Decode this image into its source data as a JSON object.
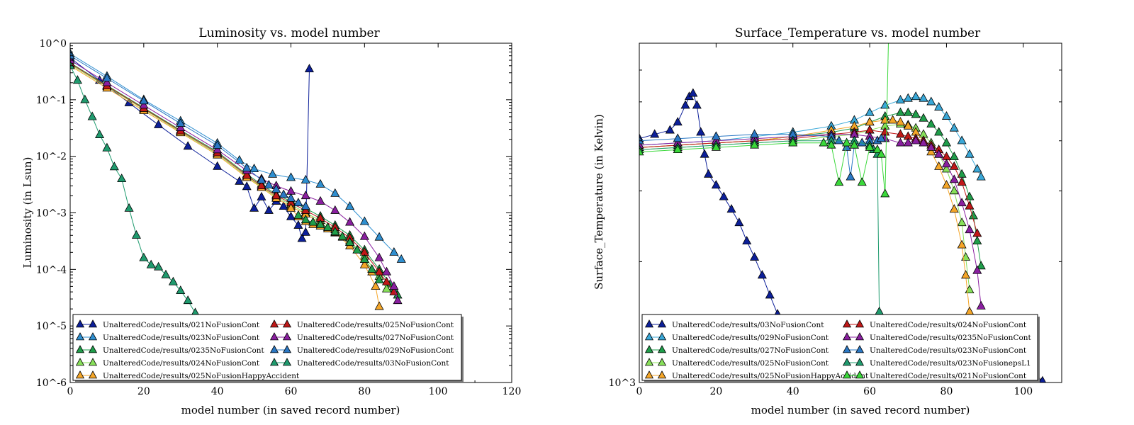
{
  "chart_data": [
    {
      "type": "line",
      "title": "Luminosity vs. model number",
      "xlabel": "model number  (in saved record number)",
      "ylabel": "Luminosity (in Lsun)",
      "xlim": [
        0,
        120
      ],
      "ylim": [
        1e-06,
        1
      ],
      "yscale": "log",
      "grid": false,
      "legend_placement": "bottom",
      "x_ticks": [
        0,
        20,
        40,
        60,
        80,
        100,
        120
      ],
      "x_tick_labels": [
        "0",
        "20",
        "40",
        "60",
        "80",
        "100",
        "120"
      ],
      "y_ticks": [
        1e-06,
        1e-05,
        0.0001,
        0.001,
        0.01,
        0.1,
        1
      ],
      "y_tick_labels": [
        "10^-6",
        "10^-5",
        "10^-4",
        "10^-3",
        "10^-2",
        "10^-1",
        "10^0"
      ],
      "series": [
        {
          "name": "UnalteredCode/results/021NoFusionCont",
          "color": "#0c1f99",
          "x": [
            0,
            8,
            16,
            24,
            32,
            40,
            46,
            48,
            50,
            52,
            54,
            56,
            58,
            60,
            62,
            63,
            64,
            65
          ],
          "y": [
            0.55,
            0.22,
            0.088,
            0.036,
            0.015,
            0.0066,
            0.0036,
            0.0029,
            0.0012,
            0.0019,
            0.0011,
            0.0016,
            0.0013,
            0.00085,
            0.0006,
            0.00035,
            0.00045,
            0.35
          ]
        },
        {
          "name": "UnalteredCode/results/023NoFusionCont",
          "color": "#2f8fd0",
          "x": [
            0,
            10,
            20,
            30,
            40,
            46,
            50,
            55,
            60,
            64,
            68,
            72,
            76,
            80,
            84,
            88,
            90
          ],
          "y": [
            0.65,
            0.26,
            0.1,
            0.042,
            0.017,
            0.0085,
            0.006,
            0.0048,
            0.0042,
            0.0038,
            0.0032,
            0.0022,
            0.0013,
            0.0007,
            0.00037,
            0.0002,
            0.00015
          ]
        },
        {
          "name": "UnalteredCode/results/0235NoFusionCont",
          "color": "#1f9e4a",
          "x": [
            0,
            10,
            20,
            30,
            40,
            48,
            52,
            56,
            60,
            64,
            68,
            72,
            76,
            80,
            84,
            87,
            88,
            89
          ],
          "y": [
            0.45,
            0.18,
            0.072,
            0.029,
            0.012,
            0.0048,
            0.0032,
            0.0021,
            0.0016,
            0.0012,
            0.00087,
            0.0006,
            0.0004,
            0.00022,
            0.0001,
            5.5e-05,
            4.5e-05,
            3.5e-05
          ]
        },
        {
          "name": "UnalteredCode/results/024NoFusionCont",
          "color": "#88e05a",
          "x": [
            0,
            10,
            20,
            30,
            40,
            48,
            52,
            56,
            60,
            64,
            68,
            72,
            76,
            80,
            84,
            86
          ],
          "y": [
            0.42,
            0.17,
            0.068,
            0.027,
            0.011,
            0.0044,
            0.0029,
            0.0019,
            0.0014,
            0.001,
            0.00073,
            0.0005,
            0.00032,
            0.00017,
            7.5e-05,
            4.5e-05
          ]
        },
        {
          "name": "UnalteredCode/results/025NoFusionHappyAccident",
          "color": "#f5a628",
          "x": [
            0,
            10,
            20,
            30,
            40,
            48,
            52,
            56,
            60,
            64,
            68,
            72,
            76,
            80,
            83,
            84
          ],
          "y": [
            0.4,
            0.16,
            0.064,
            0.026,
            0.0105,
            0.0042,
            0.0028,
            0.0018,
            0.0013,
            0.00095,
            0.00066,
            0.00044,
            0.00026,
            0.00012,
            5e-05,
            2.2e-05
          ]
        },
        {
          "name": "UnalteredCode/results/025NoFusionCont",
          "color": "#c01818",
          "x": [
            0,
            10,
            20,
            30,
            40,
            48,
            52,
            56,
            60,
            64,
            68,
            72,
            76,
            80,
            84,
            86,
            88
          ],
          "y": [
            0.44,
            0.175,
            0.07,
            0.028,
            0.0115,
            0.0046,
            0.003,
            0.002,
            0.0015,
            0.0011,
            0.0008,
            0.00055,
            0.00036,
            0.0002,
            9e-05,
            6e-05,
            4e-05
          ]
        },
        {
          "name": "UnalteredCode/results/027NoFusionCont",
          "color": "#8a1fa0",
          "x": [
            0,
            10,
            20,
            30,
            40,
            48,
            52,
            56,
            60,
            64,
            68,
            72,
            76,
            80,
            84,
            86,
            88,
            89
          ],
          "y": [
            0.5,
            0.2,
            0.08,
            0.032,
            0.013,
            0.0056,
            0.004,
            0.003,
            0.0024,
            0.002,
            0.0016,
            0.0011,
            0.00068,
            0.00038,
            0.00016,
            9e-05,
            5e-05,
            2.8e-05
          ]
        },
        {
          "name": "UnalteredCode/results/029NoFusionCont",
          "color": "#2a78c4",
          "x": [
            0,
            10,
            20,
            30,
            40,
            48,
            52,
            54,
            56,
            58,
            60,
            62,
            64
          ],
          "y": [
            0.6,
            0.24,
            0.095,
            0.038,
            0.0155,
            0.0062,
            0.0038,
            0.0031,
            0.0026,
            0.0021,
            0.0018,
            0.0015,
            0.0013
          ]
        },
        {
          "name": "UnalteredCode/results/03NoFusionCont",
          "color": "#1f9b6e",
          "x": [
            0,
            2,
            4,
            6,
            8,
            10,
            12,
            14,
            16,
            18,
            20,
            22,
            24,
            26,
            28,
            30,
            32,
            34,
            36,
            38
          ],
          "y": [
            0.4,
            0.22,
            0.1,
            0.05,
            0.024,
            0.014,
            0.0065,
            0.004,
            0.0012,
            0.0004,
            0.00016,
            0.00012,
            0.00011,
            8e-05,
            6e-05,
            4.2e-05,
            2.8e-05,
            1.7e-05,
            1e-05,
            6.5e-06
          ]
        },
        {
          "name": "",
          "color": "#f5a628",
          "x": [
            60,
            62,
            64,
            66,
            68,
            70,
            72,
            74,
            76,
            78,
            80,
            82
          ],
          "y": [
            0.0012,
            0.00085,
            0.0007,
            0.00062,
            0.00058,
            0.00052,
            0.00045,
            0.00037,
            0.0003,
            0.00022,
            0.00015,
            9e-05
          ]
        },
        {
          "name": "",
          "color": "#1f9e4a",
          "x": [
            62,
            64,
            66,
            68,
            70,
            72,
            74,
            76,
            78,
            80,
            82,
            84
          ],
          "y": [
            0.0009,
            0.00075,
            0.00068,
            0.00062,
            0.00055,
            0.00046,
            0.00038,
            0.0003,
            0.00022,
            0.00015,
            0.0001,
            6.5e-05
          ]
        }
      ]
    },
    {
      "type": "line",
      "title": "Surface_Temperature vs. model number",
      "xlabel": "model number  (in saved record number)",
      "ylabel": "Surface_Temperature (in Kelvin)",
      "xlim": [
        0,
        110
      ],
      "ylim": [
        1000,
        7000
      ],
      "yscale": "log",
      "grid": false,
      "legend_placement": "bottom",
      "x_ticks": [
        0,
        20,
        40,
        60,
        80,
        100
      ],
      "x_tick_labels": [
        "0",
        "20",
        "40",
        "60",
        "80",
        "100"
      ],
      "y_ticks": [
        1000
      ],
      "y_tick_labels": [
        "10^3"
      ],
      "series": [
        {
          "name": "UnalteredCode/results/03NoFusionCont",
          "color": "#0c1f99",
          "x": [
            0,
            4,
            8,
            10,
            12,
            13,
            14,
            15,
            16,
            17,
            18,
            20,
            22,
            24,
            26,
            28,
            30,
            32,
            34,
            36,
            40,
            44,
            48,
            52,
            56,
            60,
            70,
            80,
            90,
            100,
            102,
            104,
            105
          ],
          "y": [
            4050,
            4150,
            4250,
            4450,
            4900,
            5150,
            5250,
            4900,
            4200,
            3700,
            3300,
            3100,
            2900,
            2700,
            2500,
            2250,
            2050,
            1850,
            1650,
            1480,
            1320,
            1210,
            1140,
            1100,
            1080,
            1060,
            1040,
            1030,
            1020,
            1015,
            1012,
            1010,
            1008
          ]
        },
        {
          "name": "UnalteredCode/results/029NoFusionCont",
          "color": "#3aa8d8",
          "x": [
            0,
            10,
            20,
            30,
            40,
            50,
            56,
            60,
            64,
            68,
            70,
            72,
            74,
            76,
            78,
            80,
            82,
            84,
            86,
            88,
            89
          ],
          "y": [
            3900,
            3950,
            4000,
            4100,
            4200,
            4350,
            4500,
            4700,
            4900,
            5050,
            5100,
            5150,
            5100,
            5000,
            4850,
            4600,
            4300,
            4000,
            3700,
            3400,
            3250
          ]
        },
        {
          "name": "UnalteredCode/results/027NoFusionCont",
          "color": "#1f9e4a",
          "x": [
            0,
            10,
            20,
            30,
            40,
            50,
            56,
            60,
            64,
            68,
            70,
            72,
            74,
            76,
            78,
            80,
            82,
            84,
            86,
            87,
            88,
            89
          ],
          "y": [
            3850,
            3900,
            3950,
            4000,
            4100,
            4200,
            4300,
            4450,
            4600,
            4700,
            4700,
            4650,
            4550,
            4400,
            4200,
            3950,
            3650,
            3300,
            2900,
            2600,
            2250,
            1950
          ]
        },
        {
          "name": "UnalteredCode/results/025NoFusionCont",
          "color": "#88e05a",
          "x": [
            0,
            10,
            20,
            30,
            40,
            50,
            56,
            60,
            64,
            68,
            70,
            72,
            74,
            76,
            78,
            80,
            82,
            84,
            85,
            86
          ],
          "y": [
            3800,
            3850,
            3900,
            3950,
            4000,
            4100,
            4150,
            4250,
            4350,
            4400,
            4380,
            4300,
            4150,
            3950,
            3700,
            3400,
            3000,
            2500,
            2050,
            1700
          ]
        },
        {
          "name": "UnalteredCode/results/025NoFusionHappyAccident",
          "color": "#f5a628",
          "x": [
            0,
            10,
            20,
            30,
            40,
            50,
            56,
            60,
            64,
            66,
            68,
            70,
            72,
            74,
            76,
            78,
            80,
            82,
            84,
            85,
            86,
            87
          ],
          "y": [
            3850,
            3900,
            3950,
            4000,
            4100,
            4250,
            4350,
            4450,
            4500,
            4500,
            4450,
            4350,
            4200,
            4000,
            3750,
            3450,
            3100,
            2700,
            2200,
            1850,
            1500,
            1250
          ]
        },
        {
          "name": "UnalteredCode/results/024NoFusionCont",
          "color": "#c01818",
          "x": [
            0,
            10,
            20,
            30,
            40,
            50,
            56,
            60,
            64,
            68,
            70,
            72,
            74,
            76,
            78,
            80,
            82,
            84,
            86,
            88
          ],
          "y": [
            3850,
            3900,
            3950,
            4000,
            4050,
            4150,
            4200,
            4250,
            4200,
            4150,
            4100,
            4050,
            4000,
            3900,
            3800,
            3650,
            3450,
            3150,
            2750,
            2350
          ]
        },
        {
          "name": "UnalteredCode/results/0235NoFusionCont",
          "color": "#8a1fa0",
          "x": [
            0,
            10,
            20,
            30,
            40,
            50,
            56,
            60,
            64,
            68,
            70,
            72,
            74,
            76,
            78,
            80,
            82,
            84,
            86,
            88,
            89
          ],
          "y": [
            3900,
            3950,
            4000,
            4050,
            4100,
            4150,
            4150,
            4100,
            4050,
            3950,
            3950,
            4000,
            3950,
            3850,
            3700,
            3500,
            3200,
            2800,
            2400,
            1900,
            1550
          ]
        },
        {
          "name": "UnalteredCode/results/023NoFusionCont",
          "color": "#2a78c4",
          "x": [
            0,
            10,
            20,
            30,
            40,
            50,
            52,
            54,
            55,
            56,
            58,
            60,
            62,
            63
          ],
          "y": [
            4000,
            4050,
            4100,
            4150,
            4150,
            4100,
            4000,
            3850,
            3250,
            3900,
            3950,
            4000,
            4000,
            4050
          ]
        },
        {
          "name": "UnalteredCode/results/023NoFusionepsL1",
          "color": "#1f9b6e",
          "x": [
            0,
            10,
            20,
            30,
            40,
            50,
            56,
            60,
            61,
            62,
            62.5,
            63,
            64
          ],
          "y": [
            3800,
            3850,
            3900,
            3950,
            4000,
            4000,
            4000,
            3900,
            3800,
            3700,
            1500,
            1000,
            1000
          ]
        },
        {
          "name": "UnalteredCode/results/021NoFusionCont",
          "color": "#3ad83a",
          "x": [
            0,
            10,
            20,
            30,
            40,
            48,
            50,
            52,
            54,
            56,
            58,
            60,
            62,
            63,
            64,
            65
          ],
          "y": [
            3750,
            3800,
            3850,
            3900,
            3950,
            3950,
            3900,
            3150,
            3950,
            3900,
            3150,
            3850,
            3800,
            3700,
            2950,
            8000
          ]
        }
      ]
    }
  ]
}
